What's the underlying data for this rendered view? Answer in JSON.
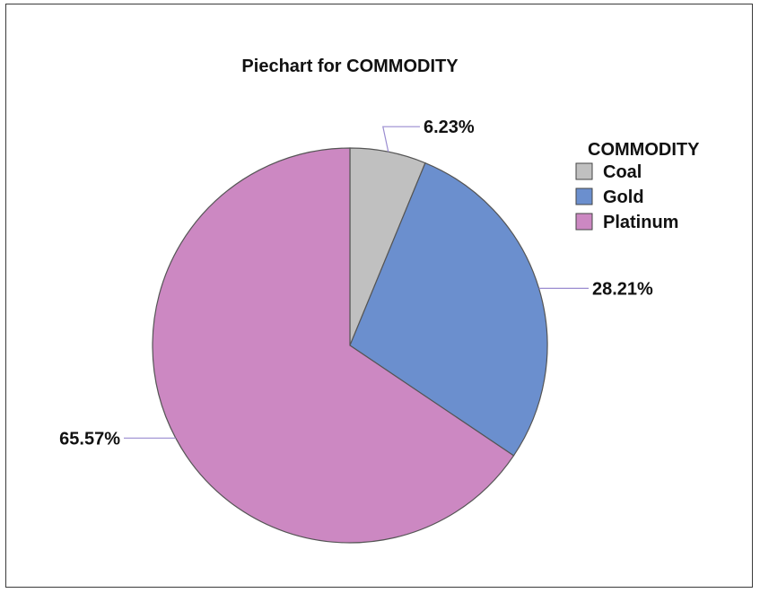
{
  "chart_data": {
    "type": "pie",
    "title": "Piechart for COMMODITY",
    "legend_title": "COMMODITY",
    "legend_position": "top-right",
    "slices": [
      {
        "name": "Coal",
        "value": 6.23,
        "label": "6.23%",
        "color": "#c0c0c0"
      },
      {
        "name": "Gold",
        "value": 28.21,
        "label": "28.21%",
        "color": "#6b8fce"
      },
      {
        "name": "Platinum",
        "value": 65.57,
        "label": "65.57%",
        "color": "#cc88c2"
      }
    ],
    "leader_line_color": "#9a8cd0",
    "edge_color": "#555555"
  }
}
